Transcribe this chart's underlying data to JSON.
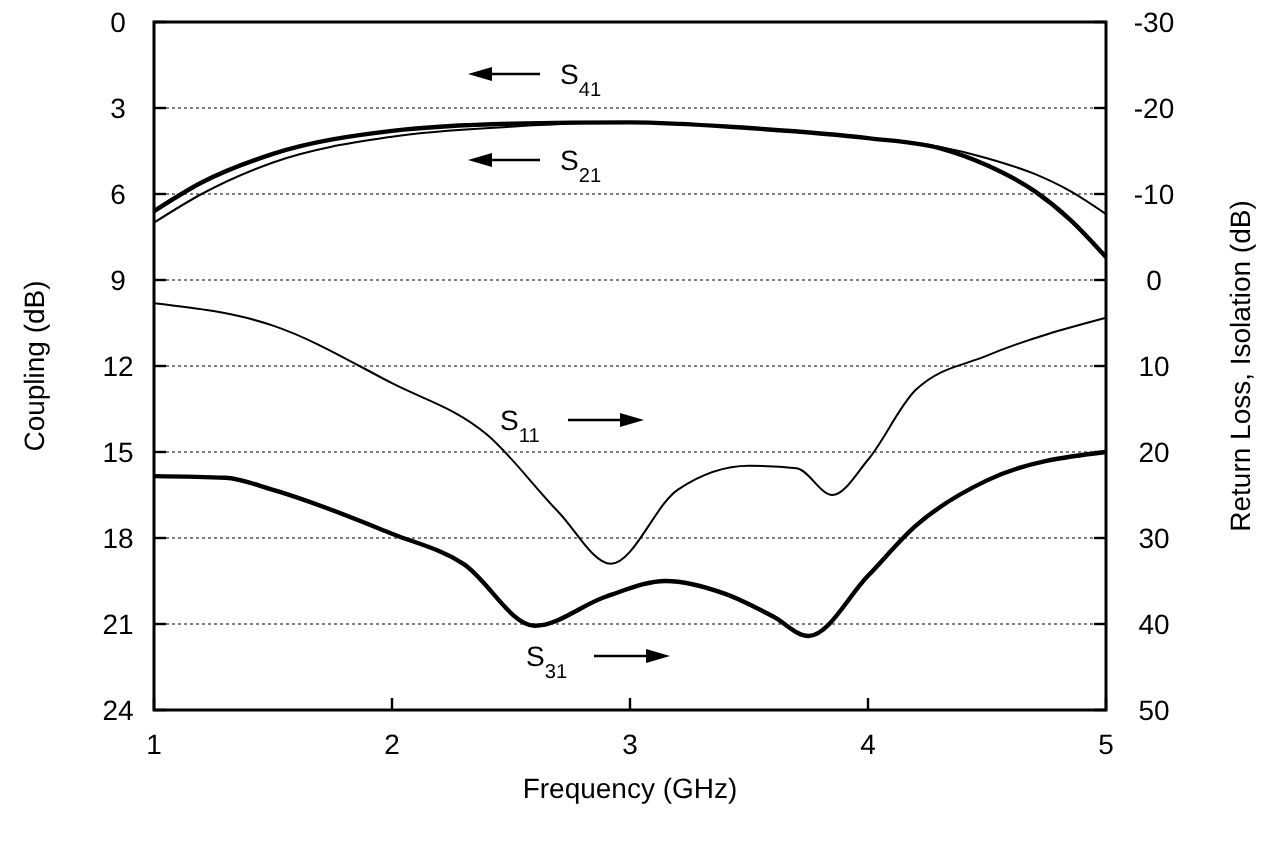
{
  "chart_data": {
    "type": "line",
    "xlabel": "Frequency (GHz)",
    "ylabel": "Coupling (dB)",
    "y2label": "Return Loss,  Isolation (dB)",
    "xlim": [
      1,
      5
    ],
    "xticks": [
      1,
      2,
      3,
      4,
      5
    ],
    "ylim": [
      24,
      0
    ],
    "yticks": [
      0,
      3,
      6,
      9,
      12,
      15,
      18,
      21,
      24
    ],
    "y2lim": [
      50,
      -30
    ],
    "y2ticks": [
      -30,
      -20,
      -10,
      0,
      10,
      20,
      30,
      40,
      50
    ],
    "grid": "y",
    "legend": "top",
    "marker": "none",
    "line_style": "solid",
    "series": [
      {
        "name": "S$_{41}$",
        "color": "#000000",
        "x": [
          1,
          1.2,
          1.5,
          2,
          2.5,
          3,
          3.5,
          4,
          4.3,
          4.5,
          4.7,
          4.85,
          5
        ],
        "values": [
          6.6,
          5.6,
          4.6,
          3.8,
          3.55,
          3.5,
          3.7,
          4.05,
          4.4,
          5.0,
          5.9,
          6.9,
          8.2
        ]
      },
      {
        "name": "S$_{21}$",
        "color": "#000000",
        "x": [
          1,
          1.2,
          1.5,
          2,
          2.5,
          3,
          3.5,
          4,
          4.3,
          4.5,
          4.7,
          4.85,
          5
        ],
        "values": [
          7.0,
          6.0,
          4.9,
          4.0,
          3.65,
          3.5,
          3.7,
          4.05,
          4.35,
          4.75,
          5.3,
          5.9,
          6.7
        ]
      },
      {
        "name": "S$_{11}$",
        "color": "#000000",
        "axis": "y2",
        "x": [
          1,
          1.5,
          2,
          2.4,
          2.7,
          2.92,
          3.2,
          3.5,
          3.7,
          3.85,
          4,
          4.2,
          4.5,
          5
        ],
        "values": [
          2.7,
          5.3,
          12,
          18,
          27,
          33,
          24.4,
          21.6,
          21.9,
          25,
          20.9,
          12.8,
          8.8,
          4.4
        ]
      },
      {
        "name": "S$_{31}$",
        "color": "#000000",
        "axis": "y2",
        "x": [
          1,
          1.3,
          1.5,
          2,
          2.3,
          2.6,
          2.9,
          3.15,
          3.4,
          3.6,
          3.75,
          4,
          4.2,
          4.5,
          5
        ],
        "values": [
          22.8,
          23,
          24.4,
          29.5,
          33,
          40.2,
          36.8,
          35,
          36.5,
          39.1,
          41.4,
          34.4,
          28.6,
          23.3,
          20
        ]
      }
    ]
  }
}
